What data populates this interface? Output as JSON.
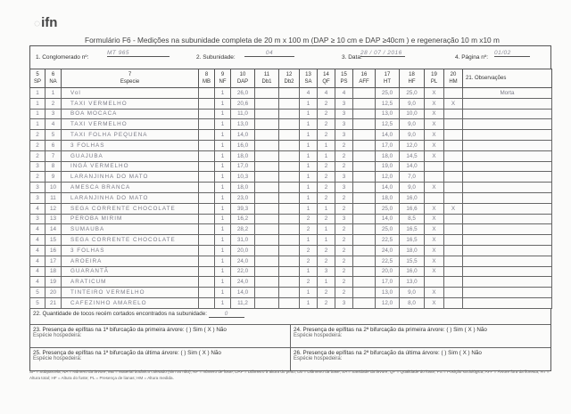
{
  "logo": "ifn",
  "title": "Formulário F6 - Medições na subunidade completa de 20 m x 100 m (DAP ≥ 10 cm e DAP ≥40cm ) e regeneração 10 m x10 m",
  "header": {
    "conglomerado_label": "1.  Conglomerado nº:",
    "conglomerado_value": "MT 965",
    "subunidade_label": "2. Subunidade:",
    "subunidade_value": "04",
    "data_label": "3. Data:",
    "data_value": "28 / 07 / 2016",
    "pagina_label": "4. Página nº:",
    "pagina_value": "01/02"
  },
  "columns": [
    {
      "num": "5",
      "label": "SP"
    },
    {
      "num": "6",
      "label": "NA"
    },
    {
      "num": "7",
      "label": "Especie"
    },
    {
      "num": "8",
      "label": "MB"
    },
    {
      "num": "9",
      "label": "NF"
    },
    {
      "num": "10",
      "label": "DAP"
    },
    {
      "num": "11",
      "label": "Db1"
    },
    {
      "num": "12",
      "label": "Db2"
    },
    {
      "num": "13",
      "label": "SA"
    },
    {
      "num": "14",
      "label": "QF"
    },
    {
      "num": "15",
      "label": "PS"
    },
    {
      "num": "16",
      "label": "AFF"
    },
    {
      "num": "17",
      "label": "HT"
    },
    {
      "num": "18",
      "label": "HF"
    },
    {
      "num": "19",
      "label": "PL"
    },
    {
      "num": "20",
      "label": "HM"
    },
    {
      "num": "",
      "label": "21. Observações"
    }
  ],
  "rows": [
    [
      "1",
      "1",
      "Vol",
      "",
      "1",
      "26,0",
      "",
      "",
      "4",
      "4",
      "4",
      "",
      "25,0",
      "25,0",
      "X",
      "",
      "Morta"
    ],
    [
      "1",
      "2",
      "TAXI VERMELHO",
      "",
      "1",
      "20,6",
      "",
      "",
      "1",
      "2",
      "3",
      "",
      "12,5",
      "9,0",
      "X",
      "X",
      ""
    ],
    [
      "1",
      "3",
      "BOA MOCACA",
      "",
      "1",
      "11,0",
      "",
      "",
      "1",
      "2",
      "3",
      "",
      "13,0",
      "10,0",
      "X",
      "",
      ""
    ],
    [
      "1",
      "4",
      "TAXI VERMELHO",
      "",
      "1",
      "13,0",
      "",
      "",
      "1",
      "2",
      "3",
      "",
      "12,5",
      "9,0",
      "X",
      "",
      ""
    ],
    [
      "2",
      "5",
      "TAXI FOLHA PEQUENA",
      "",
      "1",
      "14,0",
      "",
      "",
      "1",
      "2",
      "3",
      "",
      "14,0",
      "9,0",
      "X",
      "",
      ""
    ],
    [
      "2",
      "6",
      "3 FOLHAS",
      "",
      "1",
      "16,0",
      "",
      "",
      "1",
      "1",
      "2",
      "",
      "17,0",
      "12,0",
      "X",
      "",
      ""
    ],
    [
      "2",
      "7",
      "GUAJUBA",
      "",
      "1",
      "18,0",
      "",
      "",
      "1",
      "1",
      "2",
      "",
      "18,0",
      "14,5",
      "X",
      "",
      ""
    ],
    [
      "3",
      "8",
      "INGÁ VERMELHO",
      "",
      "1",
      "17,0",
      "",
      "",
      "1",
      "2",
      "2",
      "",
      "19,0",
      "14,0",
      "",
      "",
      ""
    ],
    [
      "2",
      "9",
      "LARANJINHA DO MATO",
      "",
      "1",
      "10,3",
      "",
      "",
      "1",
      "2",
      "3",
      "",
      "12,0",
      "7,0",
      "",
      "",
      ""
    ],
    [
      "3",
      "10",
      "AMESCA BRANCA",
      "",
      "1",
      "18,0",
      "",
      "",
      "1",
      "2",
      "3",
      "",
      "14,0",
      "9,0",
      "X",
      "",
      ""
    ],
    [
      "3",
      "11",
      "LARANJINHA DO MATO",
      "",
      "1",
      "23,0",
      "",
      "",
      "1",
      "2",
      "2",
      "",
      "18,0",
      "16,0",
      "",
      "",
      ""
    ],
    [
      "4",
      "12",
      "SEGA CORRENTE CHOCOLATE",
      "",
      "1",
      "39,3",
      "",
      "",
      "1",
      "1",
      "2",
      "",
      "25,0",
      "16,6",
      "X",
      "X",
      ""
    ],
    [
      "3",
      "13",
      "PEROBA MIRIM",
      "",
      "1",
      "16,2",
      "",
      "",
      "2",
      "2",
      "3",
      "",
      "14,0",
      "8,5",
      "X",
      "",
      ""
    ],
    [
      "4",
      "14",
      "SUMAUBA",
      "",
      "1",
      "28,2",
      "",
      "",
      "2",
      "1",
      "2",
      "",
      "25,0",
      "16,5",
      "X",
      "",
      ""
    ],
    [
      "4",
      "15",
      "SEGA CORRENTE CHOCOLATE",
      "",
      "1",
      "31,0",
      "",
      "",
      "1",
      "1",
      "2",
      "",
      "22,5",
      "16,5",
      "X",
      "",
      ""
    ],
    [
      "4",
      "16",
      "3 FOLHAS",
      "",
      "1",
      "20,0",
      "",
      "",
      "2",
      "2",
      "2",
      "",
      "24,0",
      "18,0",
      "X",
      "",
      ""
    ],
    [
      "4",
      "17",
      "AROEIRA",
      "",
      "1",
      "24,0",
      "",
      "",
      "2",
      "2",
      "2",
      "",
      "22,5",
      "15,5",
      "X",
      "",
      ""
    ],
    [
      "4",
      "18",
      "GUARANTÃ",
      "",
      "1",
      "22,0",
      "",
      "",
      "1",
      "3",
      "2",
      "",
      "20,0",
      "16,0",
      "X",
      "",
      ""
    ],
    [
      "4",
      "19",
      "ARATICUM",
      "",
      "1",
      "24,0",
      "",
      "",
      "2",
      "1",
      "2",
      "",
      "17,0",
      "13,0",
      "",
      "",
      ""
    ],
    [
      "5",
      "20",
      "TINTEIRO VERMELHO",
      "",
      "1",
      "14,0",
      "",
      "",
      "1",
      "2",
      "2",
      "",
      "13,0",
      "9,0",
      "X",
      "",
      ""
    ],
    [
      "5",
      "21",
      "CAFEZINHO AMARELO",
      "",
      "1",
      "11,2",
      "",
      "",
      "1",
      "2",
      "3",
      "",
      "12,0",
      "8,0",
      "X",
      "",
      ""
    ]
  ],
  "footer": {
    "q22": "22. Quantidade de tocos recém cortados encontrados na subunidade:",
    "q22_value": "0",
    "q23": "23. Presença de epífitas na 1ª bifurcação da primeira árvore: (  ) Sim  ( X ) Não",
    "q24": "24. Presença de epífitas na 2ª bifurcação da primeira árvore: (  ) Sim  ( X ) Não",
    "q25": "25. Presença de epífitas na 1ª bifurcação da última árvore: (  ) Sim  ( X ) Não",
    "q26": "26.  Presença de epífitas na 2ª bifurcação da última árvore: (  ) Sim  ( X ) Não",
    "hospedeira": "Espécie hospedeira:"
  },
  "legend": "SP = Subparcela; NA = Número da árvore; MB = Material botânico coletado (sim ou não); NF = número de fuste; DAP = Diâmetro à altura do peito; Db = Diâmetro da base; SA = Sanidade da árvore; QF = Qualidade do fuste; PS = Posição sociológica; AFF = Árvore fora da floresta; HT = Altura total; HF = Altura do fuste; PL = Presença de lianas; HM = Altura medida."
}
